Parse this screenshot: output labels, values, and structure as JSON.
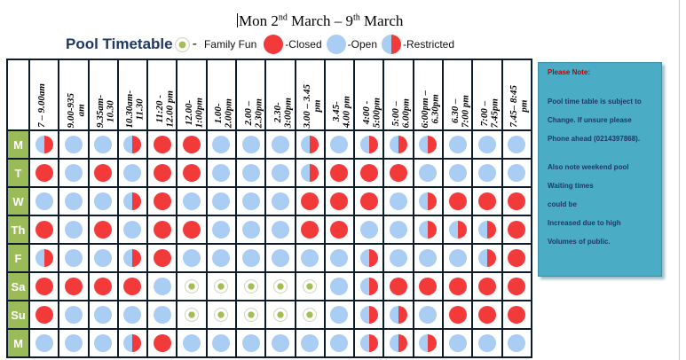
{
  "title": {
    "pre": "Mon 2",
    "sup1": "nd",
    "mid": " March – 9",
    "sup2": "th",
    "post": " March"
  },
  "legend": {
    "heading": "Pool Timetable",
    "dash": "-",
    "family_fun": "Family  Fun",
    "closed": "-Closed",
    "open": "-Open",
    "restricted": "-Restricted"
  },
  "time_slots": [
    "7 – 9.00am",
    "9.00-935\nam",
    "9.35am-\n10.30",
    "10.30am-\n11.30",
    "11:20 -\n12.00 pm",
    "12.00-\n1:00pm",
    "1.00-\n2.00pm",
    "2.00 –\n2.30pm",
    "2.30-\n3:00pm",
    "3.00 – 3.45\npm",
    "3.45-\n4.00 pm",
    "4:00 -\n5:00pm",
    "5:00 –\n6.00pm",
    "6:00pm –\n6.30pm",
    "6.30 –\n7:00 pm",
    "7:00 –\n7.45pm",
    "7.45– 8:45\npm"
  ],
  "rows": [
    {
      "day": "M",
      "cells": [
        "R",
        "O",
        "O",
        "R",
        "C",
        "C",
        "O",
        "O",
        "O",
        "R",
        "O",
        "R",
        "R",
        "R",
        "O",
        "O",
        "O"
      ]
    },
    {
      "day": "T",
      "cells": [
        "C",
        "O",
        "C",
        "O",
        "C",
        "C",
        "O",
        "O",
        "O",
        "R",
        "C",
        "C",
        "C",
        "O",
        "O",
        "O",
        "O"
      ]
    },
    {
      "day": "W",
      "cells": [
        "O",
        "O",
        "O",
        "R",
        "C",
        "O",
        "O",
        "O",
        "O",
        "C",
        "C",
        "C",
        "O",
        "R",
        "C",
        "C",
        "C"
      ]
    },
    {
      "day": "Th",
      "cells": [
        "C",
        "O",
        "C",
        "O",
        "C",
        "C",
        "O",
        "O",
        "O",
        "C",
        "C",
        "O",
        "O",
        "R",
        "R",
        "R",
        "C"
      ]
    },
    {
      "day": "F",
      "cells": [
        "R",
        "O",
        "O",
        "R",
        "C",
        "O",
        "O",
        "O",
        "O",
        "O",
        "O",
        "R",
        "O",
        "O",
        "O",
        "R",
        "C"
      ]
    },
    {
      "day": "Sa",
      "cells": [
        "C",
        "C",
        "C",
        "C",
        "O",
        "F",
        "F",
        "F",
        "F",
        "F",
        "O",
        "R",
        "C",
        "C",
        "C",
        "C",
        "C"
      ]
    },
    {
      "day": "Su",
      "cells": [
        "C",
        "O",
        "O",
        "O",
        "O",
        "F",
        "F",
        "F",
        "F",
        "F",
        "O",
        "R",
        "R",
        "O",
        "C",
        "C",
        "C"
      ]
    },
    {
      "day": "M",
      "cells": [
        "O",
        "O",
        "O",
        "R",
        "C",
        "O",
        "O",
        "O",
        "O",
        "O",
        "O",
        "R",
        "R",
        "R",
        "O",
        "O",
        "O"
      ]
    }
  ],
  "status_icons": {
    "O": "open-circle-icon",
    "C": "closed-circle-icon",
    "R": "restricted-half-circle-icon",
    "F": "family-fun-icon"
  },
  "colors": {
    "open": "#a9cdf3",
    "closed": "#f23a3a",
    "family_fun": "#a5bd55",
    "day_cell": "#9bbb58",
    "note_bg": "#4bacc6"
  },
  "note": {
    "title": "Please Note:",
    "lines": [
      "Pool time table is subject to",
      "Change. If unsure please",
      "Phone ahead (0214397868).",
      "",
      "Also note weekend pool",
      "Waiting times",
      "could be",
      "Increased due to high",
      "Volumes of public."
    ]
  }
}
